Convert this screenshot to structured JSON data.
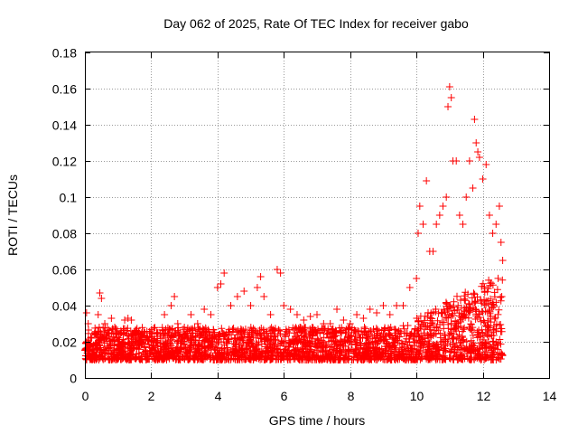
{
  "chart_data": {
    "type": "scatter",
    "title": "Day 062 of 2025, Rate Of TEC Index for receiver gabo",
    "xlabel": "GPS time / hours",
    "ylabel": "ROTI / TECUs",
    "xlim": [
      0,
      14
    ],
    "ylim": [
      0,
      0.18
    ],
    "xticks": [
      "0",
      "2",
      "4",
      "6",
      "8",
      "10",
      "12",
      "14"
    ],
    "yticks": [
      "0",
      "0.02",
      "0.04",
      "0.06",
      "0.08",
      "0.1",
      "0.12",
      "0.14",
      "0.16",
      "0.18"
    ],
    "grid": true,
    "marker": "+",
    "color": "#ff0000",
    "series": [
      {
        "name": "ROTI",
        "x": [
          0.05,
          0.1,
          0.2,
          0.3,
          0.4,
          0.45,
          0.5,
          0.6,
          0.7,
          0.8,
          0.9,
          1.0,
          1.1,
          1.2,
          1.3,
          1.4,
          1.5,
          1.6,
          1.8,
          2.0,
          2.2,
          2.4,
          2.6,
          2.7,
          2.8,
          3.0,
          3.2,
          3.4,
          3.6,
          3.8,
          4.0,
          4.1,
          4.2,
          4.4,
          4.6,
          4.8,
          5.0,
          5.2,
          5.3,
          5.4,
          5.6,
          5.8,
          5.9,
          6.0,
          6.2,
          6.4,
          6.6,
          6.8,
          7.0,
          7.2,
          7.4,
          7.6,
          7.8,
          8.0,
          8.2,
          8.4,
          8.6,
          8.8,
          9.0,
          9.2,
          9.4,
          9.6,
          9.8,
          10.0,
          10.05,
          10.1,
          10.2,
          10.3,
          10.4,
          10.5,
          10.6,
          10.7,
          10.8,
          10.9,
          10.95,
          11.0,
          11.05,
          11.1,
          11.2,
          11.3,
          11.4,
          11.5,
          11.6,
          11.7,
          11.75,
          11.8,
          11.85,
          11.9,
          12.0,
          12.1,
          12.2,
          12.3,
          12.4,
          12.5,
          12.55,
          12.6
        ],
        "y": [
          0.036,
          0.03,
          0.022,
          0.025,
          0.035,
          0.047,
          0.044,
          0.03,
          0.025,
          0.033,
          0.028,
          0.02,
          0.025,
          0.032,
          0.033,
          0.032,
          0.02,
          0.018,
          0.025,
          0.02,
          0.025,
          0.035,
          0.04,
          0.045,
          0.03,
          0.028,
          0.035,
          0.03,
          0.038,
          0.035,
          0.05,
          0.052,
          0.058,
          0.04,
          0.045,
          0.048,
          0.04,
          0.05,
          0.056,
          0.045,
          0.035,
          0.06,
          0.058,
          0.04,
          0.038,
          0.035,
          0.032,
          0.034,
          0.035,
          0.03,
          0.03,
          0.038,
          0.032,
          0.03,
          0.035,
          0.033,
          0.038,
          0.036,
          0.04,
          0.035,
          0.04,
          0.04,
          0.05,
          0.055,
          0.08,
          0.095,
          0.085,
          0.109,
          0.07,
          0.07,
          0.085,
          0.09,
          0.095,
          0.1,
          0.15,
          0.161,
          0.155,
          0.12,
          0.12,
          0.09,
          0.085,
          0.1,
          0.12,
          0.105,
          0.143,
          0.13,
          0.125,
          0.122,
          0.11,
          0.118,
          0.09,
          0.08,
          0.085,
          0.095,
          0.075,
          0.065
        ]
      }
    ]
  }
}
